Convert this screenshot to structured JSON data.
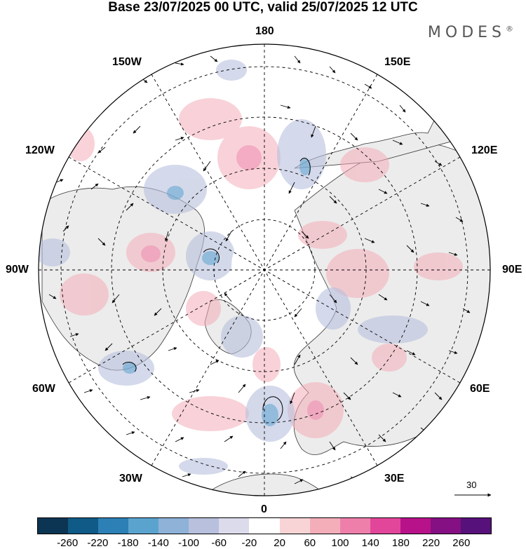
{
  "title": "Base 23/07/2025 00 UTC, valid 25/07/2025 12 UTC",
  "logo": "MODES",
  "logo_mark": "®",
  "longitude_labels": {
    "top": "180",
    "bottom": "0",
    "left": "90W",
    "right": "90E",
    "nw1": "150W",
    "nw2": "120W",
    "ne1": "150E",
    "ne2": "120E",
    "sw1": "60W",
    "sw2": "30W",
    "se1": "60E",
    "se2": "30E"
  },
  "reference_vector": {
    "label": "30"
  },
  "colorbar": {
    "ticks": [
      "-260",
      "-220",
      "-180",
      "-140",
      "-100",
      "-60",
      "-20",
      "20",
      "60",
      "100",
      "140",
      "180",
      "220",
      "260"
    ],
    "colors": [
      "#0b3552",
      "#0f5a86",
      "#2c80b5",
      "#5ba3cf",
      "#8eb2d8",
      "#b8c0dd",
      "#dcdbec",
      "#ffffff",
      "#f8d4d6",
      "#f4aeb9",
      "#ee7fab",
      "#e2469a",
      "#b8128a",
      "#851083",
      "#56117a"
    ]
  }
}
